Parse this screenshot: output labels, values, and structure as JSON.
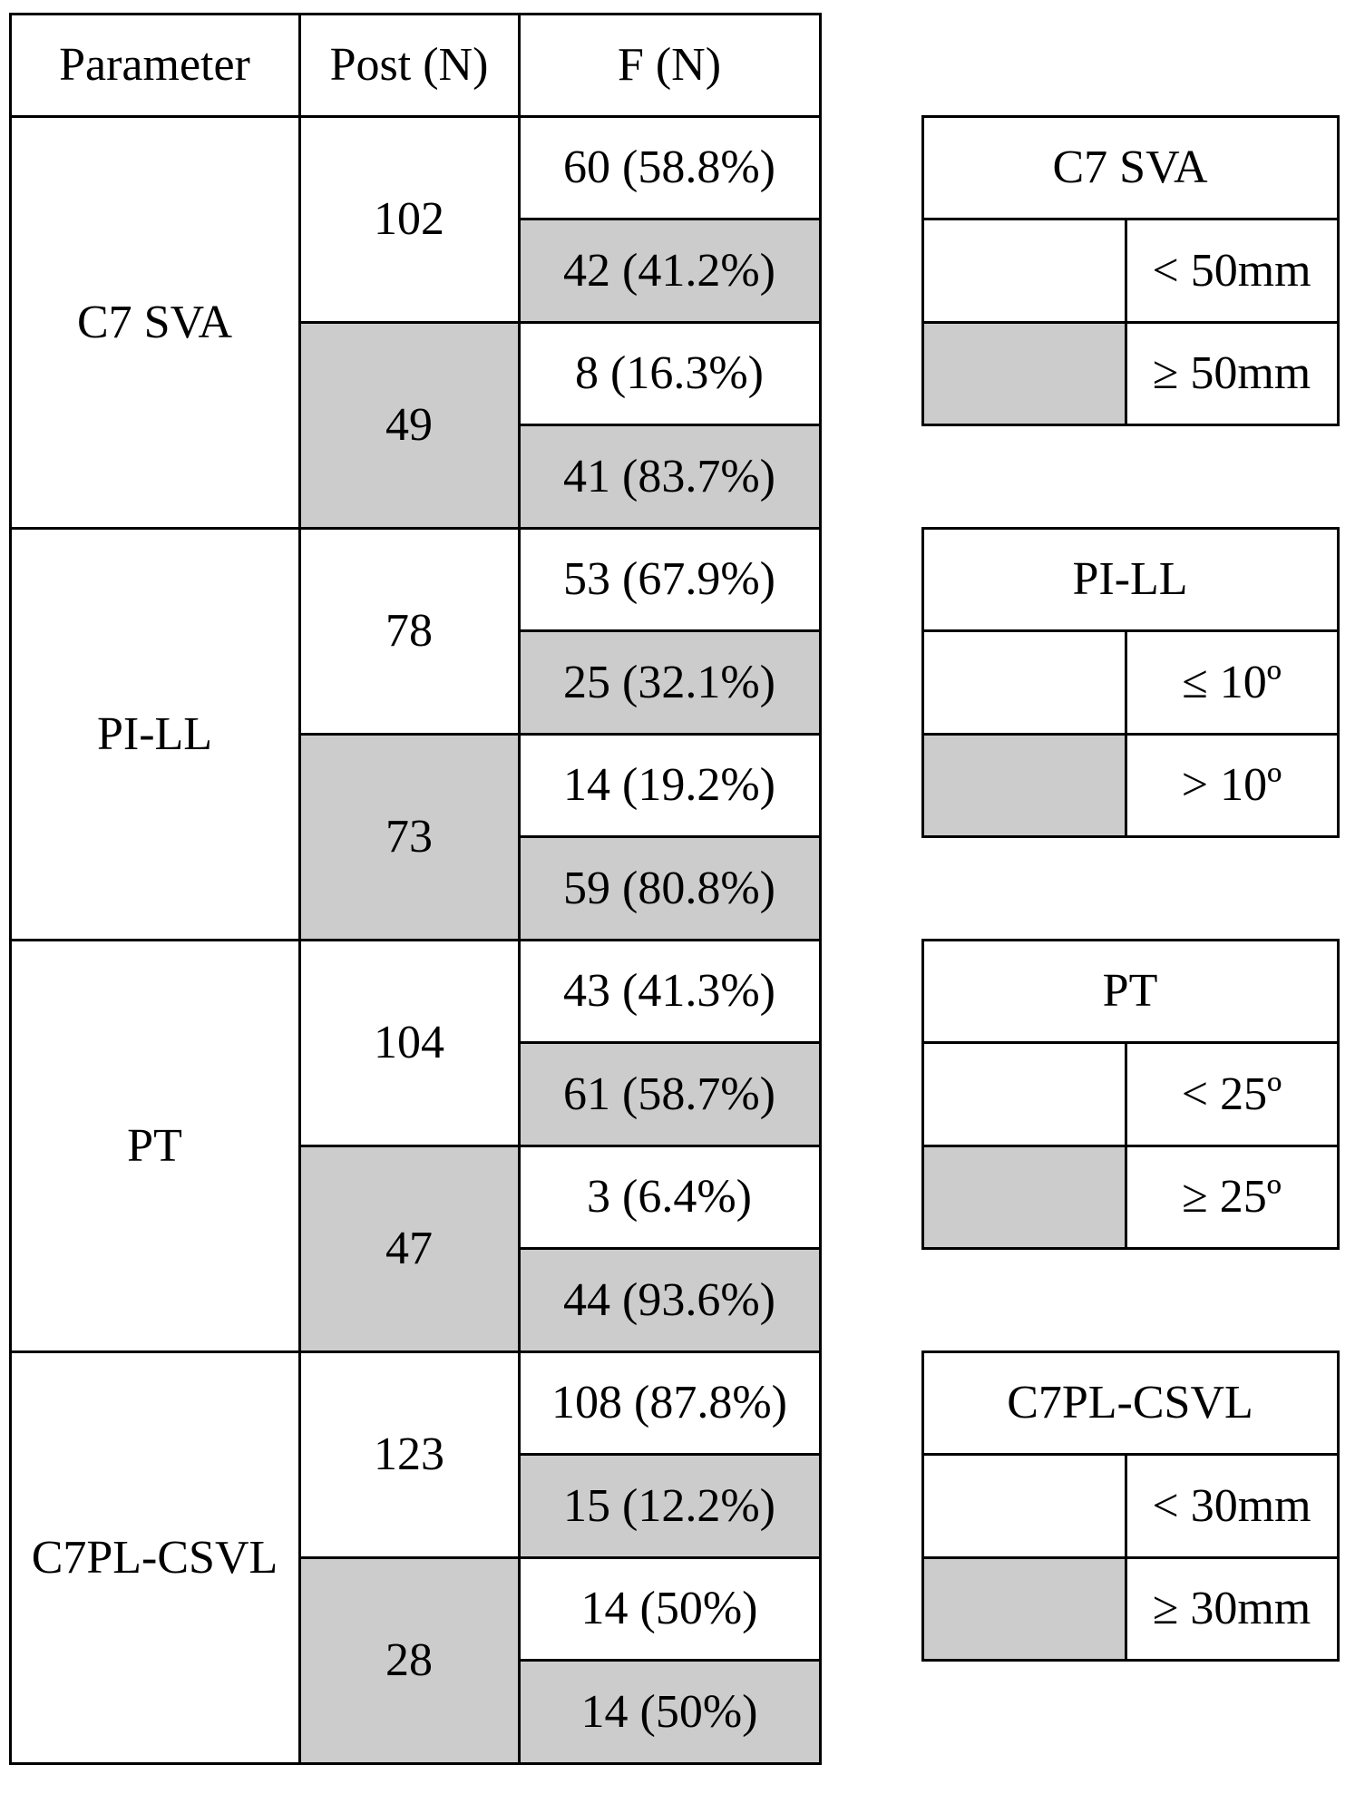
{
  "main_table": {
    "headers": [
      "Parameter",
      "Post (N)",
      "F (N)"
    ],
    "groups": [
      {
        "parameter": "C7 SVA",
        "posts": [
          {
            "n": "102",
            "f": [
              "60 (58.8%)",
              "42 (41.2%)"
            ]
          },
          {
            "n": "49",
            "f": [
              "8 (16.3%)",
              "41 (83.7%)"
            ]
          }
        ]
      },
      {
        "parameter": "PI-LL",
        "posts": [
          {
            "n": "78",
            "f": [
              "53 (67.9%)",
              "25 (32.1%)"
            ]
          },
          {
            "n": "73",
            "f": [
              "14 (19.2%)",
              "59 (80.8%)"
            ]
          }
        ]
      },
      {
        "parameter": "PT",
        "posts": [
          {
            "n": "104",
            "f": [
              "43 (41.3%)",
              "61 (58.7%)"
            ]
          },
          {
            "n": "47",
            "f": [
              "3 (6.4%)",
              "44 (93.6%)"
            ]
          }
        ]
      },
      {
        "parameter": "C7PL-CSVL",
        "posts": [
          {
            "n": "123",
            "f": [
              "108 (87.8%)",
              "15 (12.2%)"
            ]
          },
          {
            "n": "28",
            "f": [
              "14 (50%)",
              "14 (50%)"
            ]
          }
        ]
      }
    ]
  },
  "legends": [
    {
      "title": "C7 SVA",
      "rows": [
        "< 50mm",
        "≥ 50mm"
      ]
    },
    {
      "title": "PI-LL",
      "rows": [
        "≤ 10º",
        "> 10º"
      ]
    },
    {
      "title": "PT",
      "rows": [
        "< 25º",
        "≥ 25º"
      ]
    },
    {
      "title": "C7PL-CSVL",
      "rows": [
        "< 30mm",
        "≥ 30mm"
      ]
    }
  ],
  "colors": {
    "shade": "#cccccc",
    "border": "#000000",
    "background": "#ffffff"
  }
}
